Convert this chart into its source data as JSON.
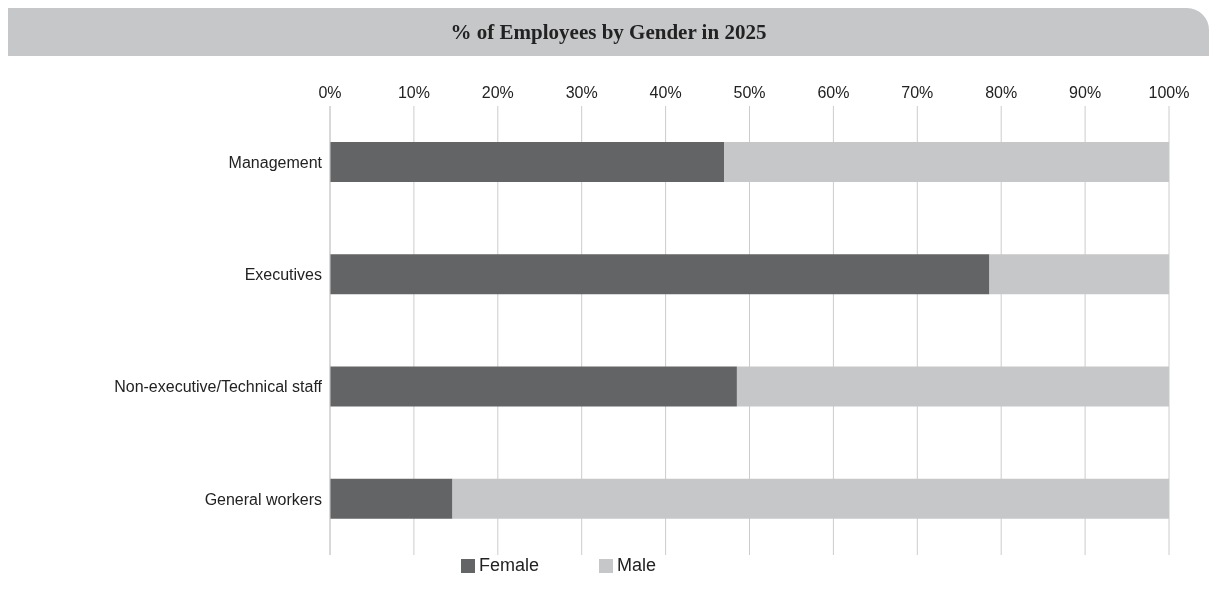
{
  "chart_data": {
    "type": "bar",
    "title": "% of Employees by Gender in 2025",
    "orientation": "horizontal",
    "stacked": true,
    "categories": [
      "Management",
      "Executives",
      "Non-executive/Technical staff",
      "General workers"
    ],
    "series": [
      {
        "name": "Female",
        "color": "#636466",
        "values": [
          47,
          78.6,
          48.5,
          14.6
        ]
      },
      {
        "name": "Male",
        "color": "#c6c7c9",
        "values": [
          53,
          21.4,
          51.5,
          85.4
        ]
      }
    ],
    "xlim": [
      0,
      100
    ],
    "xticks": [
      {
        "value": 0,
        "label": "0%"
      },
      {
        "value": 10,
        "label": "10%"
      },
      {
        "value": 20,
        "label": "20%"
      },
      {
        "value": 30,
        "label": "30%"
      },
      {
        "value": 40,
        "label": "40%"
      },
      {
        "value": 50,
        "label": "50%"
      },
      {
        "value": 60,
        "label": "60%"
      },
      {
        "value": 70,
        "label": "70%"
      },
      {
        "value": 80,
        "label": "80%"
      },
      {
        "value": 90,
        "label": "90%"
      },
      {
        "value": 100,
        "label": "100%"
      }
    ],
    "grid": "x",
    "legend": "bottom"
  }
}
